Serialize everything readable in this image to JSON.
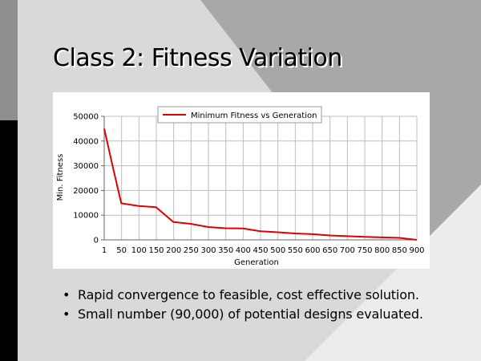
{
  "slide": {
    "title": "Class 2: Fitness Variation",
    "bullets": [
      "Rapid convergence to feasible, cost effective solution.",
      "Small number (90,000) of potential designs evaluated."
    ],
    "bullet_glyph": "•"
  },
  "colors": {
    "series": "#e00000",
    "grid": "#bdbdbd",
    "background_light": "#d9d9d9",
    "background_dark": "#a8a8a8",
    "left_band": "#000000"
  },
  "chart_data": {
    "type": "line",
    "legend": "Minimum Fitness vs Generation",
    "legend_position": "top-center",
    "xlabel": "Generation",
    "ylabel": "Min. Fitness",
    "grid": true,
    "x_ticks": [
      "1",
      "50",
      "100",
      "150",
      "200",
      "250",
      "300",
      "350",
      "400",
      "450",
      "500",
      "550",
      "600",
      "650",
      "700",
      "750",
      "800",
      "850",
      "900"
    ],
    "y_ticks": [
      0,
      10000,
      20000,
      30000,
      40000,
      50000
    ],
    "y_tick_labels": [
      "0",
      "10000",
      "20000",
      "30000",
      "40000",
      "50000"
    ],
    "ylim": [
      0,
      50000
    ],
    "series": [
      {
        "name": "Minimum Fitness vs Generation",
        "x": [
          1,
          25,
          50,
          100,
          150,
          200,
          250,
          300,
          350,
          400,
          450,
          500,
          550,
          600,
          650,
          700,
          750,
          800,
          850,
          900
        ],
        "values": [
          45000,
          30000,
          14800,
          13700,
          13200,
          7200,
          6500,
          5200,
          4700,
          4600,
          3500,
          3100,
          2600,
          2300,
          1800,
          1500,
          1200,
          1000,
          800,
          0
        ]
      }
    ]
  }
}
